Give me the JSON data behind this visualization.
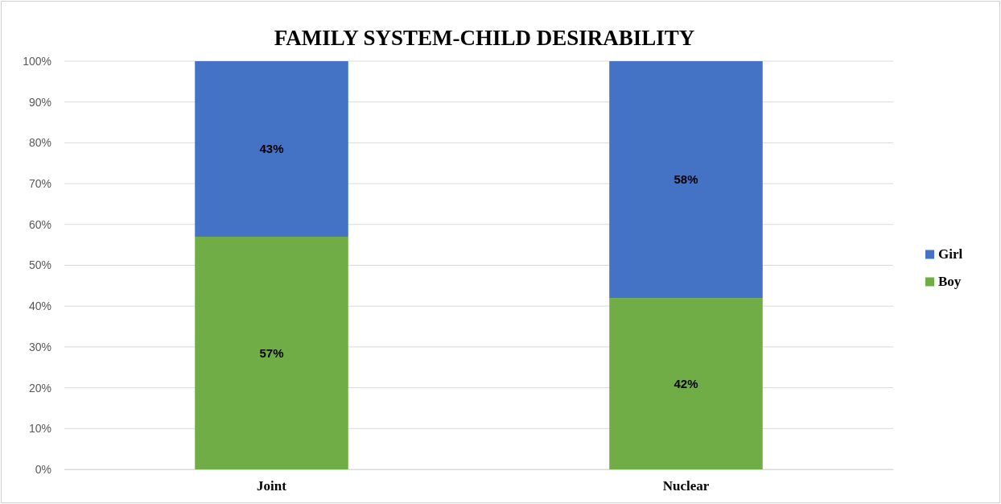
{
  "chart_data": {
    "type": "bar",
    "title": "FAMILY SYSTEM-CHILD DESIRABILITY",
    "categories": [
      "Joint",
      "Nuclear"
    ],
    "stacked": true,
    "series": [
      {
        "name": "Boy",
        "color": "#70ad47",
        "values": [
          57,
          42
        ]
      },
      {
        "name": "Girl",
        "color": "#4472c4",
        "values": [
          43,
          58
        ]
      }
    ],
    "ylim": [
      0,
      100
    ],
    "yticks": [
      {
        "value": 0,
        "label": "0%"
      },
      {
        "value": 10,
        "label": "10%"
      },
      {
        "value": 20,
        "label": "20%"
      },
      {
        "value": 30,
        "label": "30%"
      },
      {
        "value": 40,
        "label": "40%"
      },
      {
        "value": 50,
        "label": "50%"
      },
      {
        "value": 60,
        "label": "60%"
      },
      {
        "value": 70,
        "label": "70%"
      },
      {
        "value": 80,
        "label": "80%"
      },
      {
        "value": 90,
        "label": "90%"
      },
      {
        "value": 100,
        "label": "100%"
      }
    ],
    "value_labels": [
      [
        "57%",
        "42%"
      ],
      [
        "43%",
        "58%"
      ]
    ],
    "grid": "y",
    "legend": "right"
  }
}
